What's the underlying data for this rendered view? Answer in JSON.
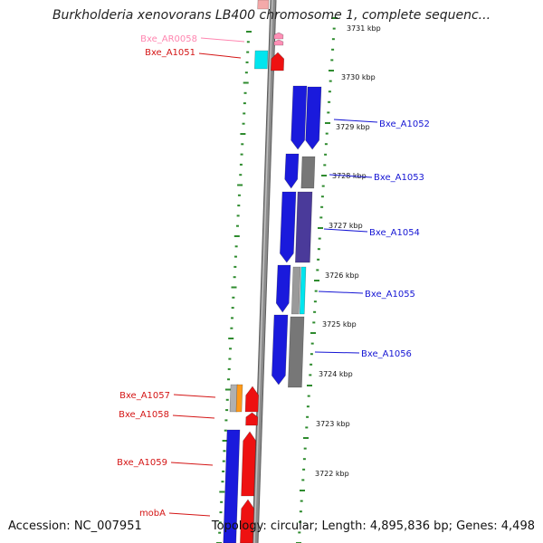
{
  "title": "Burkholderia xenovorans LB400 chromosome 1, complete sequenc...",
  "footer": {
    "accession": "Accession: NC_007951",
    "stats": "Topology: circular; Length: 4,895,836 bp; Genes: 4,498"
  },
  "colors": {
    "background": "#ffffff",
    "backbone": "#8c8c8c",
    "dots": "#2e8b2e",
    "strand_blue": "#1a1adc",
    "strand_red": "#ee1111",
    "grey_feature": "#777777",
    "purple_feature": "#4a3a9a",
    "cyan_feature": "#00e5ee",
    "pink_feature": "#ff8fb6",
    "orange_feature": "#ff9a1a",
    "label_red": "#d41515",
    "label_blue": "#1515d4",
    "label_pink": "#ff86b0"
  },
  "scale_ticks": [
    "3731 kbp",
    "3730 kbp",
    "3729 kbp",
    "3728 kbp",
    "3727 kbp",
    "3726 kbp",
    "3725 kbp",
    "3724 kbp",
    "3723 kbp",
    "3722 kbp"
  ],
  "gene_labels": [
    {
      "text": "Bxe_AR0058",
      "color": "#ff86b0"
    },
    {
      "text": "Bxe_A1051",
      "color": "#d41515"
    },
    {
      "text": "Bxe_A1052",
      "color": "#1515d4"
    },
    {
      "text": "Bxe_A1053",
      "color": "#1515d4"
    },
    {
      "text": "Bxe_A1054",
      "color": "#1515d4"
    },
    {
      "text": "Bxe_A1055",
      "color": "#1515d4"
    },
    {
      "text": "Bxe_A1056",
      "color": "#1515d4"
    },
    {
      "text": "Bxe_A1057",
      "color": "#d41515"
    },
    {
      "text": "Bxe_A1058",
      "color": "#d41515"
    },
    {
      "text": "Bxe_A1059",
      "color": "#d41515"
    },
    {
      "text": "mobA",
      "color": "#d41515"
    }
  ]
}
